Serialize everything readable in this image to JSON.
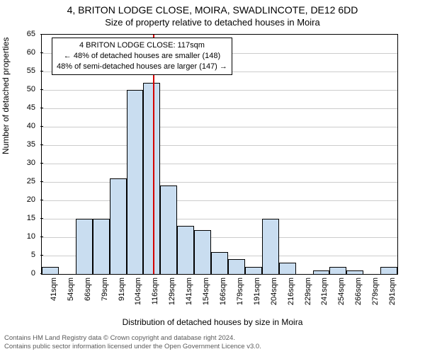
{
  "title_line1": "4, BRITON LODGE CLOSE, MOIRA, SWADLINCOTE, DE12 6DD",
  "title_line2": "Size of property relative to detached houses in Moira",
  "y_axis_label": "Number of detached properties",
  "x_axis_label": "Distribution of detached houses by size in Moira",
  "footer_line1": "Contains HM Land Registry data © Crown copyright and database right 2024.",
  "footer_line2": "Contains public sector information licensed under the Open Government Licence v3.0.",
  "info_box": {
    "line1": "4 BRITON LODGE CLOSE: 117sqm",
    "line2": "← 48% of detached houses are smaller (148)",
    "line3": "48% of semi-detached houses are larger (147) →"
  },
  "chart": {
    "type": "histogram",
    "ylim": [
      0,
      65
    ],
    "ytick_step": 5,
    "yticks": [
      0,
      5,
      10,
      15,
      20,
      25,
      30,
      35,
      40,
      45,
      50,
      55,
      60,
      65
    ],
    "background_color": "#ffffff",
    "grid_color": "#cccccc",
    "border_color": "#000000",
    "bar_fill": "#c9ddf0",
    "bar_stroke": "#000000",
    "vline_color": "#d40000",
    "vline_x_value": 117,
    "categories": [
      "41sqm",
      "54sqm",
      "66sqm",
      "79sqm",
      "91sqm",
      "104sqm",
      "116sqm",
      "129sqm",
      "141sqm",
      "154sqm",
      "166sqm",
      "179sqm",
      "191sqm",
      "204sqm",
      "216sqm",
      "229sqm",
      "241sqm",
      "254sqm",
      "266sqm",
      "279sqm",
      "291sqm"
    ],
    "values": [
      2,
      0,
      15,
      15,
      26,
      50,
      52,
      24,
      13,
      12,
      6,
      4,
      2,
      15,
      3,
      0,
      1,
      2,
      1,
      0,
      2
    ],
    "title_fontsize": 14,
    "subtitle_fontsize": 13,
    "axis_label_fontsize": 12,
    "tick_fontsize": 11
  }
}
